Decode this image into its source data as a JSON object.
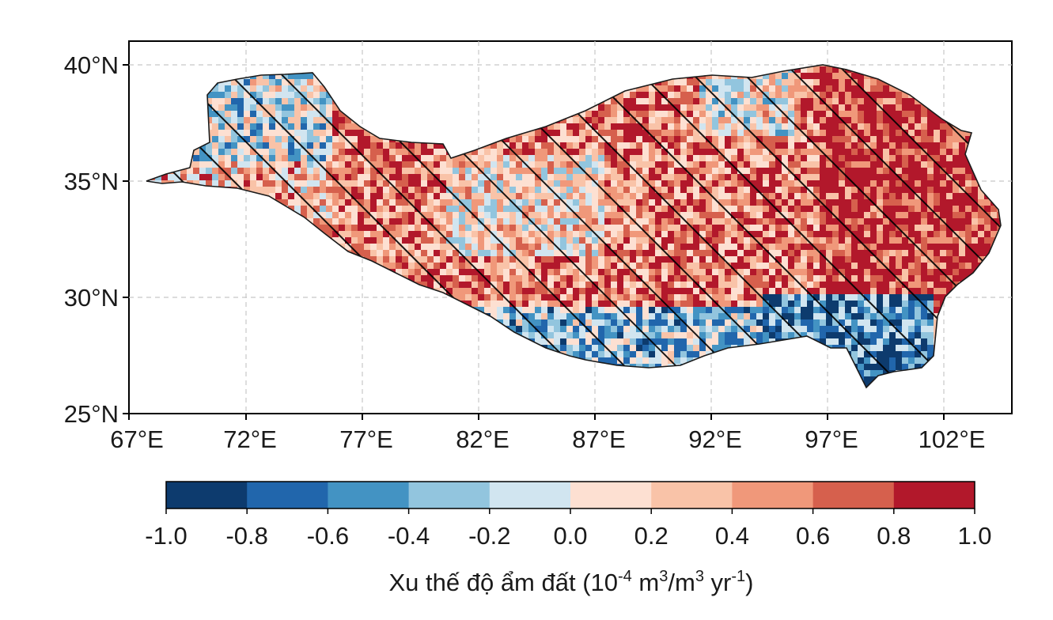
{
  "map": {
    "lat_ticks": [
      "40°N",
      "35°N",
      "30°N",
      "25°N"
    ],
    "lon_ticks": [
      "67°E",
      "72°E",
      "77°E",
      "82°E",
      "87°E",
      "92°E",
      "97°E",
      "102°E"
    ],
    "lat_range": [
      25,
      41
    ],
    "lon_range": [
      67,
      105
    ],
    "grid": true,
    "hatching": "diagonal hatching over most of the eastern and central plateau"
  },
  "colorbar": {
    "title_main": "Xu thế độ ẩm đất (10",
    "title_exp1": "-4",
    "title_mid1": " m",
    "title_exp2": "3",
    "title_mid2": "/m",
    "title_exp3": "3",
    "title_mid3": " yr",
    "title_exp4": "-1",
    "title_end": ")",
    "ticks": [
      "-1.0",
      "-0.8",
      "-0.6",
      "-0.4",
      "-0.2",
      "0.0",
      "0.2",
      "0.4",
      "0.6",
      "0.8",
      "1.0"
    ],
    "colors": [
      "#0d3b6e",
      "#2166ac",
      "#4393c3",
      "#92c5de",
      "#d1e5f0",
      "#fde0d2",
      "#f9c3a8",
      "#f0987a",
      "#d6604d",
      "#b2182b"
    ]
  }
}
